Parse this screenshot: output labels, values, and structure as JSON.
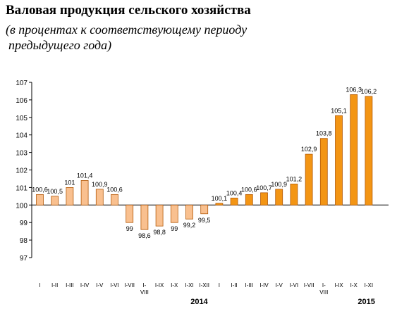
{
  "title": "Валовая продукция сельского хозяйства",
  "subtitle_line1": "(в процентах к соответствующему периоду",
  "subtitle_line2": "предыдущего года)",
  "colors": {
    "year2014": "#F9C08F",
    "year2015": "#F39514",
    "stroke": "#B35A0A"
  },
  "chart_data": {
    "type": "bar",
    "title": "Валовая продукция сельского хозяйства",
    "subtitle": "(в процентах к соответствующему периоду предыдущего года)",
    "baseline": 100,
    "ylim": [
      97,
      107
    ],
    "yticks": [
      "97",
      "98",
      "99",
      "100",
      "101",
      "102",
      "103",
      "104",
      "105",
      "106",
      "107"
    ],
    "grid": false,
    "legend": "none",
    "groups": [
      {
        "year": "2014",
        "categories": [
          "I",
          "I-II",
          "I-III",
          "I-IV",
          "I-V",
          "I-VI",
          "I-VII",
          "I-VIII",
          "I-IX",
          "I-X",
          "I-XI",
          "I-XII"
        ],
        "values": [
          100.6,
          100.5,
          101,
          101.4,
          100.9,
          100.6,
          99,
          98.6,
          98.8,
          99,
          99.2,
          99.5
        ],
        "labels": [
          "100,6",
          "100,5",
          "101",
          "101,4",
          "100,9",
          "100,6",
          "99",
          "98,6",
          "98,8",
          "99",
          "99,2",
          "99,5"
        ]
      },
      {
        "year": "2015",
        "categories": [
          "I",
          "I-II",
          "I-III",
          "I-IV",
          "I-V",
          "I-VI",
          "I-VII",
          "I-VIII",
          "I-IX",
          "I-X",
          "I-XI"
        ],
        "values": [
          100.1,
          100.4,
          100.6,
          100.7,
          100.9,
          101.2,
          102.9,
          103.8,
          105.1,
          106.3,
          106.2
        ],
        "labels": [
          "100,1",
          "100,4",
          "100,6",
          "100,7",
          "100,9",
          "101,2",
          "102,9",
          "103,8",
          "105,1",
          "106,3",
          "106,2"
        ]
      }
    ]
  }
}
